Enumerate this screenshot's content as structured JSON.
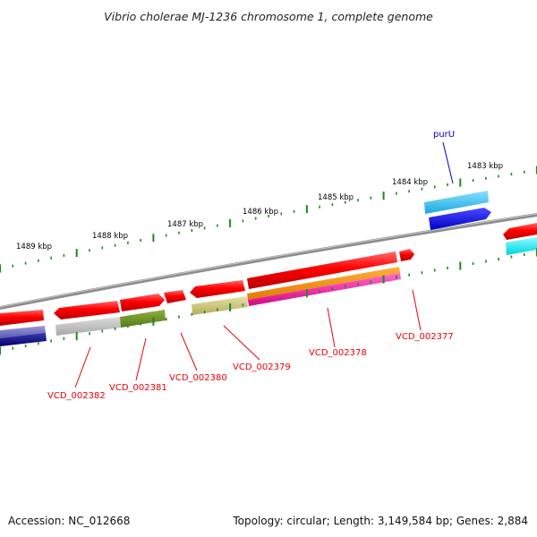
{
  "title": "Vibrio cholerae MJ-1236 chromosome 1, complete genome",
  "footer": {
    "accession": "Accession: NC_012668",
    "summary": "Topology: circular; Length: 3,149,584 bp; Genes: 2,884"
  },
  "scale_labels": [
    "1489 kbp",
    "1488 kbp",
    "1487 kbp",
    "1486 kbp",
    "1485 kbp",
    "1484 kbp",
    "1483 kbp"
  ],
  "gene_labels": [
    {
      "text": "VCD_002382",
      "color": "#e8000b"
    },
    {
      "text": "VCD_002381",
      "color": "#e8000b"
    },
    {
      "text": "VCD_002380",
      "color": "#e8000b"
    },
    {
      "text": "VCD_002379",
      "color": "#e8000b"
    },
    {
      "text": "VCD_002378",
      "color": "#e8000b"
    },
    {
      "text": "VCD_002377",
      "color": "#e8000b"
    },
    {
      "text": "purU",
      "color": "#0000c8"
    }
  ],
  "colors": {
    "backbone": "#8c8c8c",
    "cds_red": "#ff0000",
    "tick_green": "#1b8a1b",
    "leader_red": "#e8000b",
    "leader_blue": "#0000c8"
  }
}
